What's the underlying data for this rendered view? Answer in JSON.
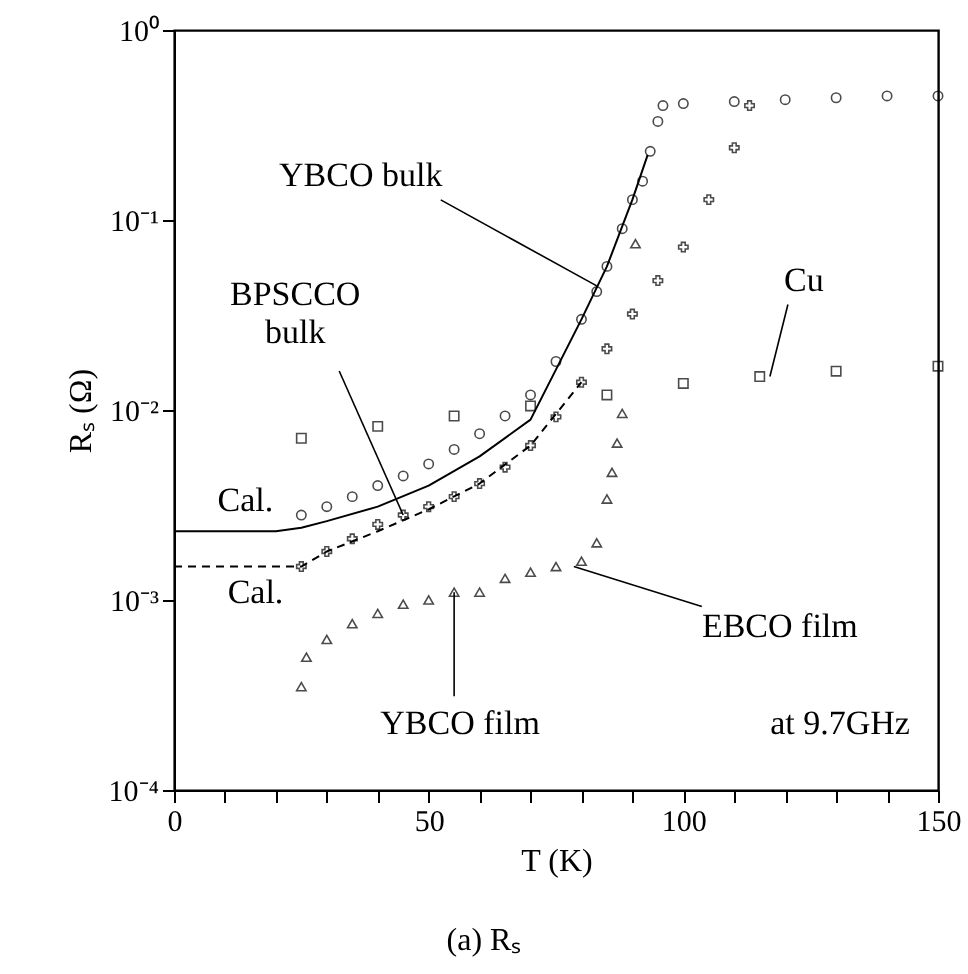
{
  "chart_data": {
    "type": "scatter",
    "xlabel": "T (K)",
    "ylabel": "Rₛ (Ω)",
    "log": "y",
    "grid": false,
    "xlim": [
      0,
      150
    ],
    "ylim": [
      0.0001,
      1
    ],
    "xticks": [
      0,
      {
        "value": 10,
        "label": null
      },
      {
        "value": 20,
        "label": null
      },
      {
        "value": 30,
        "label": null
      },
      {
        "value": 40,
        "label": null
      },
      50,
      {
        "value": 60,
        "label": null
      },
      {
        "value": 70,
        "label": null
      },
      {
        "value": 80,
        "label": null
      },
      {
        "value": 90,
        "label": null
      },
      100,
      {
        "value": 110,
        "label": null
      },
      {
        "value": 120,
        "label": null
      },
      {
        "value": 130,
        "label": null
      },
      {
        "value": 140,
        "label": null
      },
      150
    ],
    "yticks": [
      {
        "value": 0.0001,
        "label": "10⁻⁴"
      },
      {
        "value": 0.001,
        "label": "10⁻³"
      },
      {
        "value": 0.01,
        "label": "10⁻²"
      },
      {
        "value": 0.1,
        "label": "10⁻¹"
      },
      {
        "value": 1,
        "label": "10⁰"
      }
    ],
    "series": [
      {
        "marker": "circle",
        "color": "#000000",
        "x": [
          25,
          30,
          35,
          40,
          45,
          50,
          55,
          60,
          65,
          70,
          75,
          80,
          83,
          85,
          88,
          90,
          92,
          93.5,
          95,
          96,
          100,
          110,
          120,
          130,
          140,
          150
        ],
        "values": [
          0.0028,
          0.0031,
          0.0035,
          0.004,
          0.0045,
          0.0052,
          0.0062,
          0.0075,
          0.0093,
          0.012,
          0.018,
          0.03,
          0.042,
          0.057,
          0.09,
          0.128,
          0.16,
          0.23,
          0.33,
          0.4,
          0.41,
          0.42,
          0.43,
          0.44,
          0.45,
          0.45
        ]
      },
      {
        "marker": "cross",
        "color": "#000000",
        "x": [
          25,
          30,
          35,
          40,
          45,
          50,
          55,
          60,
          65,
          70,
          75,
          80,
          85,
          90,
          95,
          100,
          105,
          110,
          113
        ],
        "values": [
          0.0015,
          0.0018,
          0.0021,
          0.0025,
          0.0028,
          0.0031,
          0.0035,
          0.0041,
          0.005,
          0.0065,
          0.0092,
          0.014,
          0.021,
          0.032,
          0.048,
          0.072,
          0.128,
          0.24,
          0.4
        ]
      },
      {
        "marker": "square",
        "color": "#000000",
        "x": [
          25,
          40,
          55,
          70,
          85,
          100,
          115,
          130,
          150
        ],
        "values": [
          0.0071,
          0.0082,
          0.0093,
          0.0105,
          0.012,
          0.0138,
          0.015,
          0.016,
          0.017
        ]
      },
      {
        "marker": "triangle",
        "color": "#000000",
        "x": [
          25,
          26,
          30,
          35,
          40,
          45,
          50,
          55,
          60,
          65,
          70,
          75,
          80,
          83,
          85,
          86,
          87,
          88,
          90.6
        ],
        "values": [
          0.00035,
          0.0005,
          0.00062,
          0.00075,
          0.00085,
          0.00095,
          0.001,
          0.0011,
          0.0011,
          0.0013,
          0.0014,
          0.0015,
          0.0016,
          0.002,
          0.0034,
          0.0047,
          0.0067,
          0.0096,
          0.075
        ]
      },
      {
        "type": "line",
        "line_style": "solid",
        "color": "#000000",
        "x": [
          0,
          10,
          20,
          25,
          30,
          40,
          50,
          60,
          70,
          80,
          85,
          90,
          93
        ],
        "values": [
          0.0023,
          0.0023,
          0.0023,
          0.0024,
          0.0026,
          0.0031,
          0.004,
          0.0057,
          0.0089,
          0.03,
          0.057,
          0.128,
          0.22
        ]
      },
      {
        "type": "line",
        "line_style": "dashed",
        "color": "#000000",
        "x": [
          0,
          10,
          20,
          25,
          30,
          40,
          50,
          60,
          70,
          80
        ],
        "values": [
          0.0015,
          0.0015,
          0.0015,
          0.0015,
          0.0018,
          0.0023,
          0.003,
          0.0041,
          0.0065,
          0.014
        ]
      }
    ],
    "annotations": [
      {
        "text": "YBCO bulk",
        "x": 83,
        "y": 0.045
      },
      {
        "text": "BPSCCO\nbulk",
        "x": 45,
        "y": 0.0028
      },
      {
        "text": "Cu",
        "x": 117,
        "y": 0.015
      },
      {
        "text": "EBCO film",
        "x": 78.5,
        "y": 0.0015
      },
      {
        "text": "YBCO film",
        "x": 55,
        "y": 0.0011
      },
      {
        "text": "Cal.",
        "x": 14,
        "y": 0.0023
      },
      {
        "text": "Cal.",
        "x": 16,
        "y": 0.0015
      },
      "at 9.7GHz",
      "(a) Rₛ"
    ]
  }
}
